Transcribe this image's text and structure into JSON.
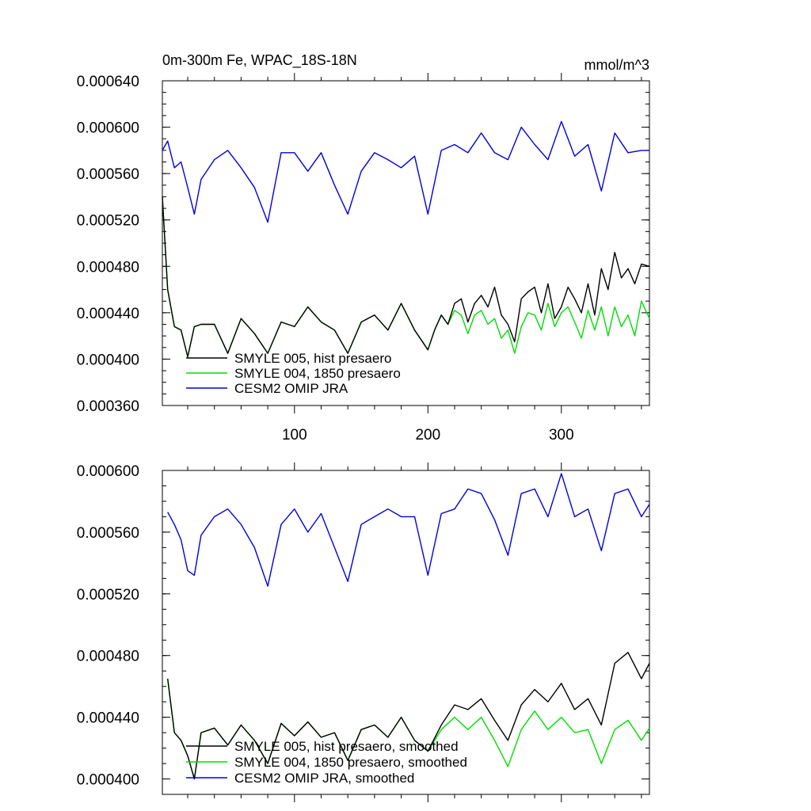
{
  "chart_data": [
    {
      "type": "line",
      "title": "0m-300m Fe, WPAC_18S-18N",
      "units": "mmol/m^3",
      "xlim": [
        1,
        366
      ],
      "ylim": [
        0.00036,
        0.00064
      ],
      "x_ticks": [
        100,
        200,
        300
      ],
      "x_tick_labels": [
        "100",
        "200",
        "300"
      ],
      "y_ticks": [
        0.00036,
        0.0004,
        0.00044,
        0.00048,
        0.00052,
        0.00056,
        0.0006,
        0.00064
      ],
      "y_tick_labels": [
        "0.000360",
        "0.000400",
        "0.000440",
        "0.000480",
        "0.000520",
        "0.000560",
        "0.000600",
        "0.000640"
      ],
      "legend_position": "bottom-left",
      "series": [
        {
          "name": "SMYLE 005, hist presaero",
          "color": "#000000",
          "x": [
            1,
            5,
            10,
            15,
            20,
            25,
            30,
            40,
            50,
            60,
            70,
            80,
            90,
            100,
            110,
            120,
            130,
            140,
            150,
            160,
            170,
            180,
            190,
            200,
            205,
            210,
            215,
            220,
            225,
            230,
            235,
            240,
            245,
            250,
            255,
            260,
            265,
            270,
            275,
            280,
            285,
            290,
            295,
            300,
            305,
            310,
            315,
            320,
            325,
            330,
            335,
            340,
            345,
            350,
            355,
            360,
            366
          ],
          "values": [
            0.00054,
            0.00046,
            0.000428,
            0.000425,
            0.000402,
            0.000428,
            0.00043,
            0.00043,
            0.000405,
            0.000435,
            0.000422,
            0.000405,
            0.000432,
            0.000428,
            0.000445,
            0.000432,
            0.000425,
            0.000405,
            0.000432,
            0.000438,
            0.000425,
            0.000448,
            0.000425,
            0.000408,
            0.000425,
            0.000438,
            0.00043,
            0.000448,
            0.000452,
            0.000432,
            0.000448,
            0.000455,
            0.000445,
            0.000462,
            0.000438,
            0.00043,
            0.000415,
            0.000452,
            0.000458,
            0.000462,
            0.00044,
            0.000465,
            0.000435,
            0.000445,
            0.000462,
            0.000452,
            0.00044,
            0.000465,
            0.000438,
            0.000478,
            0.00046,
            0.000492,
            0.00047,
            0.000478,
            0.000465,
            0.000482,
            0.00048
          ]
        },
        {
          "name": "SMYLE 004, 1850 presaero",
          "color": "#00dd00",
          "x": [
            1,
            5,
            10,
            15,
            20,
            25,
            30,
            40,
            50,
            60,
            70,
            80,
            90,
            100,
            110,
            120,
            130,
            140,
            150,
            160,
            170,
            180,
            190,
            200,
            205,
            210,
            215,
            220,
            225,
            230,
            235,
            240,
            245,
            250,
            255,
            260,
            265,
            270,
            275,
            280,
            285,
            290,
            295,
            300,
            305,
            310,
            315,
            320,
            325,
            330,
            335,
            340,
            345,
            350,
            355,
            360,
            366
          ],
          "values": [
            0.00054,
            0.00046,
            0.000428,
            0.000425,
            0.000402,
            0.000428,
            0.00043,
            0.00043,
            0.000405,
            0.000435,
            0.000422,
            0.000405,
            0.000432,
            0.000428,
            0.000445,
            0.000432,
            0.000425,
            0.000405,
            0.000432,
            0.000438,
            0.000425,
            0.000448,
            0.000425,
            0.000408,
            0.000425,
            0.000438,
            0.00043,
            0.000442,
            0.000438,
            0.000422,
            0.000438,
            0.000442,
            0.00043,
            0.000435,
            0.000418,
            0.000425,
            0.000405,
            0.000428,
            0.00044,
            0.000438,
            0.000425,
            0.000448,
            0.000428,
            0.00044,
            0.000445,
            0.000432,
            0.000418,
            0.000442,
            0.000425,
            0.000445,
            0.00042,
            0.000445,
            0.000428,
            0.000438,
            0.00042,
            0.00045,
            0.000435
          ]
        },
        {
          "name": "CESM2 OMIP JRA",
          "color": "#0000dd",
          "x": [
            1,
            5,
            10,
            15,
            20,
            25,
            30,
            40,
            50,
            60,
            70,
            80,
            90,
            100,
            110,
            120,
            130,
            140,
            150,
            160,
            170,
            180,
            190,
            200,
            210,
            220,
            230,
            240,
            250,
            260,
            270,
            280,
            290,
            300,
            310,
            320,
            330,
            340,
            350,
            360,
            366
          ],
          "values": [
            0.00058,
            0.000588,
            0.000565,
            0.00057,
            0.000548,
            0.000525,
            0.000555,
            0.000572,
            0.00058,
            0.000565,
            0.000548,
            0.000518,
            0.000578,
            0.000578,
            0.000562,
            0.000578,
            0.00055,
            0.000525,
            0.000562,
            0.000578,
            0.000572,
            0.000565,
            0.000575,
            0.000525,
            0.00058,
            0.000585,
            0.000578,
            0.000595,
            0.000578,
            0.000572,
            0.0006,
            0.000585,
            0.000572,
            0.000605,
            0.000575,
            0.000585,
            0.000545,
            0.000595,
            0.000578,
            0.00058,
            0.00058
          ]
        }
      ]
    },
    {
      "type": "line",
      "xlim": [
        1,
        366
      ],
      "ylim": [
        0.00039,
        0.0006
      ],
      "x_ticks": [
        100,
        200,
        300
      ],
      "y_ticks": [
        0.0004,
        0.00044,
        0.00048,
        0.00052,
        0.00056,
        0.0006
      ],
      "y_tick_labels": [
        "0.000400",
        "0.000440",
        "0.000480",
        "0.000520",
        "0.000560",
        "0.000600"
      ],
      "legend_position": "bottom-left",
      "series": [
        {
          "name": "SMYLE 005, hist presaero, smoothed",
          "color": "#000000",
          "x": [
            5,
            10,
            15,
            20,
            25,
            30,
            40,
            50,
            60,
            70,
            80,
            90,
            100,
            110,
            120,
            130,
            140,
            150,
            160,
            170,
            180,
            190,
            200,
            210,
            220,
            230,
            240,
            250,
            260,
            270,
            280,
            290,
            300,
            310,
            320,
            330,
            340,
            350,
            360,
            366
          ],
          "values": [
            0.000465,
            0.00043,
            0.000425,
            0.000415,
            0.0004,
            0.00043,
            0.000433,
            0.000422,
            0.000435,
            0.000425,
            0.00041,
            0.000436,
            0.000428,
            0.000437,
            0.000427,
            0.00043,
            0.000412,
            0.000432,
            0.000435,
            0.000427,
            0.00044,
            0.000425,
            0.000418,
            0.000435,
            0.000448,
            0.000445,
            0.000452,
            0.000438,
            0.000425,
            0.000448,
            0.000458,
            0.00045,
            0.000462,
            0.000445,
            0.000452,
            0.000435,
            0.000475,
            0.000482,
            0.000465,
            0.000475
          ]
        },
        {
          "name": "SMYLE 004, 1850 presaero, smoothed",
          "color": "#00dd00",
          "x": [
            5,
            10,
            15,
            20,
            25,
            30,
            40,
            50,
            60,
            70,
            80,
            90,
            100,
            110,
            120,
            130,
            140,
            150,
            160,
            170,
            180,
            190,
            200,
            210,
            220,
            230,
            240,
            250,
            260,
            270,
            280,
            290,
            300,
            310,
            320,
            330,
            340,
            350,
            360,
            366
          ],
          "values": [
            0.000465,
            0.00043,
            0.000425,
            0.000415,
            0.0004,
            0.00043,
            0.000433,
            0.000422,
            0.000435,
            0.000425,
            0.00041,
            0.000436,
            0.000428,
            0.000437,
            0.000427,
            0.00043,
            0.000412,
            0.000432,
            0.000435,
            0.000427,
            0.00044,
            0.000425,
            0.000418,
            0.000432,
            0.00044,
            0.000432,
            0.00044,
            0.000425,
            0.000408,
            0.000432,
            0.000444,
            0.000432,
            0.00044,
            0.00043,
            0.000432,
            0.00041,
            0.000432,
            0.000438,
            0.000425,
            0.000433
          ]
        },
        {
          "name": "CESM2 OMIP JRA, smoothed",
          "color": "#0000dd",
          "x": [
            5,
            10,
            15,
            20,
            25,
            30,
            40,
            50,
            60,
            70,
            80,
            90,
            100,
            110,
            120,
            130,
            140,
            150,
            160,
            170,
            180,
            190,
            200,
            210,
            220,
            230,
            240,
            250,
            260,
            270,
            280,
            290,
            300,
            310,
            320,
            330,
            340,
            350,
            360,
            366
          ],
          "values": [
            0.000573,
            0.000565,
            0.000555,
            0.000535,
            0.000532,
            0.000558,
            0.00057,
            0.000575,
            0.000565,
            0.00055,
            0.000525,
            0.000565,
            0.000575,
            0.00056,
            0.000572,
            0.00055,
            0.000528,
            0.000565,
            0.00057,
            0.000575,
            0.00057,
            0.00057,
            0.000532,
            0.000572,
            0.000575,
            0.000588,
            0.000585,
            0.000568,
            0.000545,
            0.000585,
            0.000588,
            0.00057,
            0.000598,
            0.00057,
            0.000575,
            0.000548,
            0.000585,
            0.000588,
            0.00057,
            0.000578
          ]
        }
      ]
    }
  ]
}
